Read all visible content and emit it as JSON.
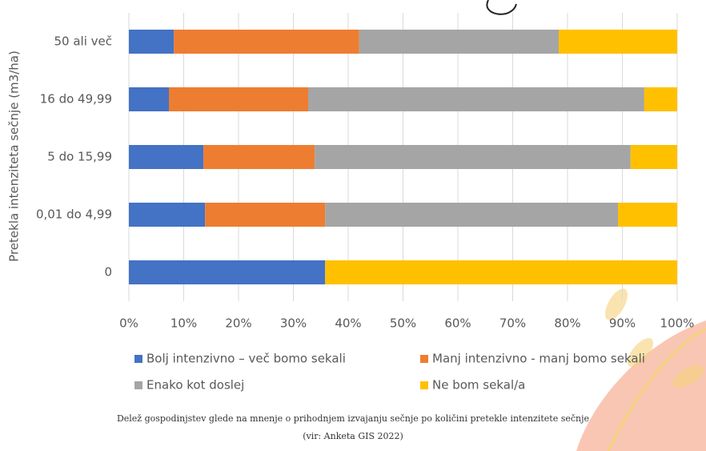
{
  "chart_data": {
    "type": "stacked-bar-horizontal",
    "y_axis_label": "Pretekla intenziteta sečnje (m3/ha)",
    "categories": [
      "50 ali več",
      "16 do 49,99",
      "5 do 15,99",
      "0,01 do 4,99",
      "0"
    ],
    "series": [
      {
        "name": "Bolj intenzivno – več bomo sekali",
        "color": "#4472c4",
        "values": [
          8.2,
          7.3,
          13.6,
          13.9,
          35.8
        ]
      },
      {
        "name": "Manj intenzivno - manj bomo sekali",
        "color": "#ed7d31",
        "values": [
          33.8,
          25.4,
          20.3,
          21.9,
          0
        ]
      },
      {
        "name": "Enako kot doslej",
        "color": "#a5a5a5",
        "values": [
          36.4,
          61.3,
          57.6,
          53.4,
          0
        ]
      },
      {
        "name": "Ne bom sekal/a",
        "color": "#ffc000",
        "values": [
          21.6,
          6.0,
          8.5,
          10.8,
          64.2
        ]
      }
    ],
    "xlim": [
      0,
      100
    ],
    "xticks": [
      {
        "value": 0,
        "label": "0%"
      },
      {
        "value": 10,
        "label": "10%"
      },
      {
        "value": 20,
        "label": "20%"
      },
      {
        "value": 30,
        "label": "30%"
      },
      {
        "value": 40,
        "label": "40%"
      },
      {
        "value": 50,
        "label": "50%"
      },
      {
        "value": 60,
        "label": "60%"
      },
      {
        "value": 70,
        "label": "70%"
      },
      {
        "value": 80,
        "label": "80%"
      },
      {
        "value": 90,
        "label": "90%"
      },
      {
        "value": 100,
        "label": "100%"
      }
    ],
    "grid": true,
    "caption": [
      "Delež gospodinjstev glede na mnenje o prihodnjem izvajanju sečnje po količini pretekle intenzitete sečnje",
      "(vir: Anketa GIS 2022)"
    ]
  }
}
